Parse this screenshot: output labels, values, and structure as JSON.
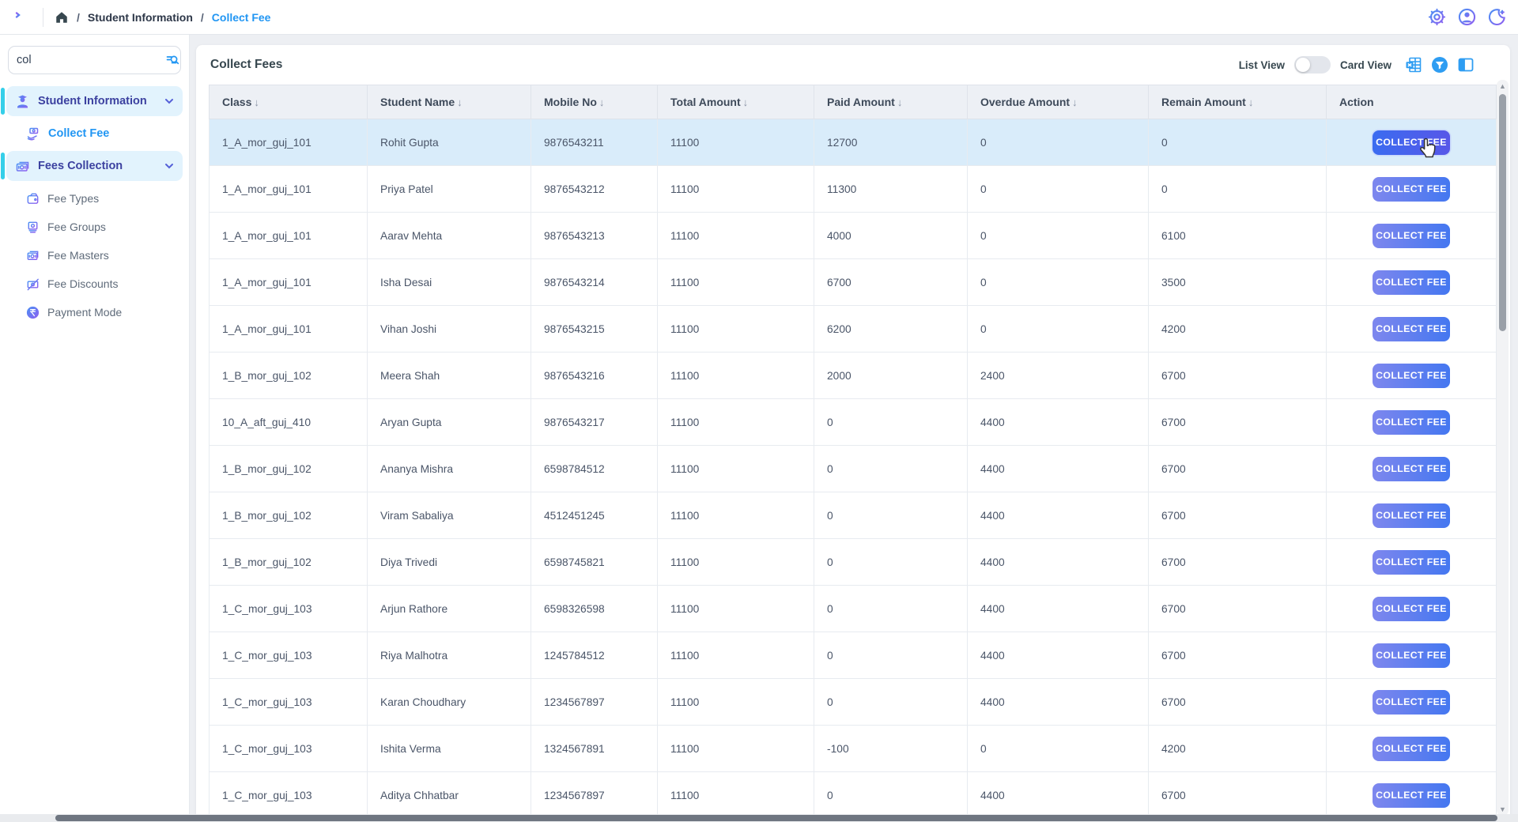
{
  "topbar": {
    "breadcrumb": {
      "separator": "/",
      "items": [
        "Student Information",
        "Collect Fee"
      ]
    },
    "icons": [
      "settings-icon",
      "profile-icon",
      "dark-mode-icon"
    ]
  },
  "sidebar": {
    "search": {
      "value": "col"
    },
    "items": [
      {
        "label": "Student Information",
        "type": "group",
        "active": true,
        "expanded": true
      },
      {
        "label": "Collect Fee",
        "type": "sub",
        "active": true
      },
      {
        "label": "Fees Collection",
        "type": "group",
        "active": true,
        "expanded": true
      },
      {
        "label": "Fee Types",
        "type": "sub",
        "active": false
      },
      {
        "label": "Fee Groups",
        "type": "sub",
        "active": false
      },
      {
        "label": "Fee Masters",
        "type": "sub",
        "active": false
      },
      {
        "label": "Fee Discounts",
        "type": "sub",
        "active": false
      },
      {
        "label": "Payment Mode",
        "type": "sub",
        "active": false
      }
    ]
  },
  "main": {
    "title": "Collect Fees",
    "view_controls": {
      "list_label": "List View",
      "card_label": "Card View",
      "toggle_state": "list"
    },
    "table": {
      "columns": [
        {
          "label": "Class",
          "sortable": true
        },
        {
          "label": "Student Name",
          "sortable": true
        },
        {
          "label": "Mobile No",
          "sortable": true
        },
        {
          "label": "Total Amount",
          "sortable": true
        },
        {
          "label": "Paid Amount",
          "sortable": true
        },
        {
          "label": "Overdue Amount",
          "sortable": true
        },
        {
          "label": "Remain Amount",
          "sortable": true
        },
        {
          "label": "Action",
          "sortable": false
        }
      ],
      "action_label": "COLLECT FEE",
      "rows": [
        {
          "class": "1_A_mor_guj_101",
          "student_name": "Rohit Gupta",
          "mobile_no": "9876543211",
          "total_amount": "11100",
          "paid_amount": "12700",
          "overdue_amount": "0",
          "remain_amount": "0"
        },
        {
          "class": "1_A_mor_guj_101",
          "student_name": "Priya Patel",
          "mobile_no": "9876543212",
          "total_amount": "11100",
          "paid_amount": "11300",
          "overdue_amount": "0",
          "remain_amount": "0"
        },
        {
          "class": "1_A_mor_guj_101",
          "student_name": "Aarav Mehta",
          "mobile_no": "9876543213",
          "total_amount": "11100",
          "paid_amount": "4000",
          "overdue_amount": "0",
          "remain_amount": "6100"
        },
        {
          "class": "1_A_mor_guj_101",
          "student_name": "Isha Desai",
          "mobile_no": "9876543214",
          "total_amount": "11100",
          "paid_amount": "6700",
          "overdue_amount": "0",
          "remain_amount": "3500"
        },
        {
          "class": "1_A_mor_guj_101",
          "student_name": "Vihan Joshi",
          "mobile_no": "9876543215",
          "total_amount": "11100",
          "paid_amount": "6200",
          "overdue_amount": "0",
          "remain_amount": "4200"
        },
        {
          "class": "1_B_mor_guj_102",
          "student_name": "Meera Shah",
          "mobile_no": "9876543216",
          "total_amount": "11100",
          "paid_amount": "2000",
          "overdue_amount": "2400",
          "remain_amount": "6700"
        },
        {
          "class": "10_A_aft_guj_410",
          "student_name": "Aryan Gupta",
          "mobile_no": "9876543217",
          "total_amount": "11100",
          "paid_amount": "0",
          "overdue_amount": "4400",
          "remain_amount": "6700"
        },
        {
          "class": "1_B_mor_guj_102",
          "student_name": "Ananya Mishra",
          "mobile_no": "6598784512",
          "total_amount": "11100",
          "paid_amount": "0",
          "overdue_amount": "4400",
          "remain_amount": "6700"
        },
        {
          "class": "1_B_mor_guj_102",
          "student_name": "Viram Sabaliya",
          "mobile_no": "4512451245",
          "total_amount": "11100",
          "paid_amount": "0",
          "overdue_amount": "4400",
          "remain_amount": "6700"
        },
        {
          "class": "1_B_mor_guj_102",
          "student_name": "Diya Trivedi",
          "mobile_no": "6598745821",
          "total_amount": "11100",
          "paid_amount": "0",
          "overdue_amount": "4400",
          "remain_amount": "6700"
        },
        {
          "class": "1_C_mor_guj_103",
          "student_name": "Arjun Rathore",
          "mobile_no": "6598326598",
          "total_amount": "11100",
          "paid_amount": "0",
          "overdue_amount": "4400",
          "remain_amount": "6700"
        },
        {
          "class": "1_C_mor_guj_103",
          "student_name": "Riya Malhotra",
          "mobile_no": "1245784512",
          "total_amount": "11100",
          "paid_amount": "0",
          "overdue_amount": "4400",
          "remain_amount": "6700"
        },
        {
          "class": "1_C_mor_guj_103",
          "student_name": "Karan Choudhary",
          "mobile_no": "1234567897",
          "total_amount": "11100",
          "paid_amount": "0",
          "overdue_amount": "4400",
          "remain_amount": "6700"
        },
        {
          "class": "1_C_mor_guj_103",
          "student_name": "Ishita Verma",
          "mobile_no": "1324567891",
          "total_amount": "11100",
          "paid_amount": "-100",
          "overdue_amount": "0",
          "remain_amount": "4200"
        },
        {
          "class": "1_C_mor_guj_103",
          "student_name": "Aditya Chhatbar",
          "mobile_no": "1234567897",
          "total_amount": "11100",
          "paid_amount": "0",
          "overdue_amount": "4400",
          "remain_amount": "6700"
        }
      ]
    }
  },
  "colors": {
    "accent_blue": "#2196f3",
    "sidebar_active_bg": "#e2f3fd",
    "sidebar_active_bar": "#35cfe9",
    "table_header_bg": "#edf0f5",
    "row_highlight_bg": "#d9ecfa",
    "button_gradient_start": "#7e87ee",
    "button_gradient_end": "#4477f0",
    "icon_gradient_start": "#4a90f4",
    "icon_gradient_end": "#8f5ff0"
  }
}
